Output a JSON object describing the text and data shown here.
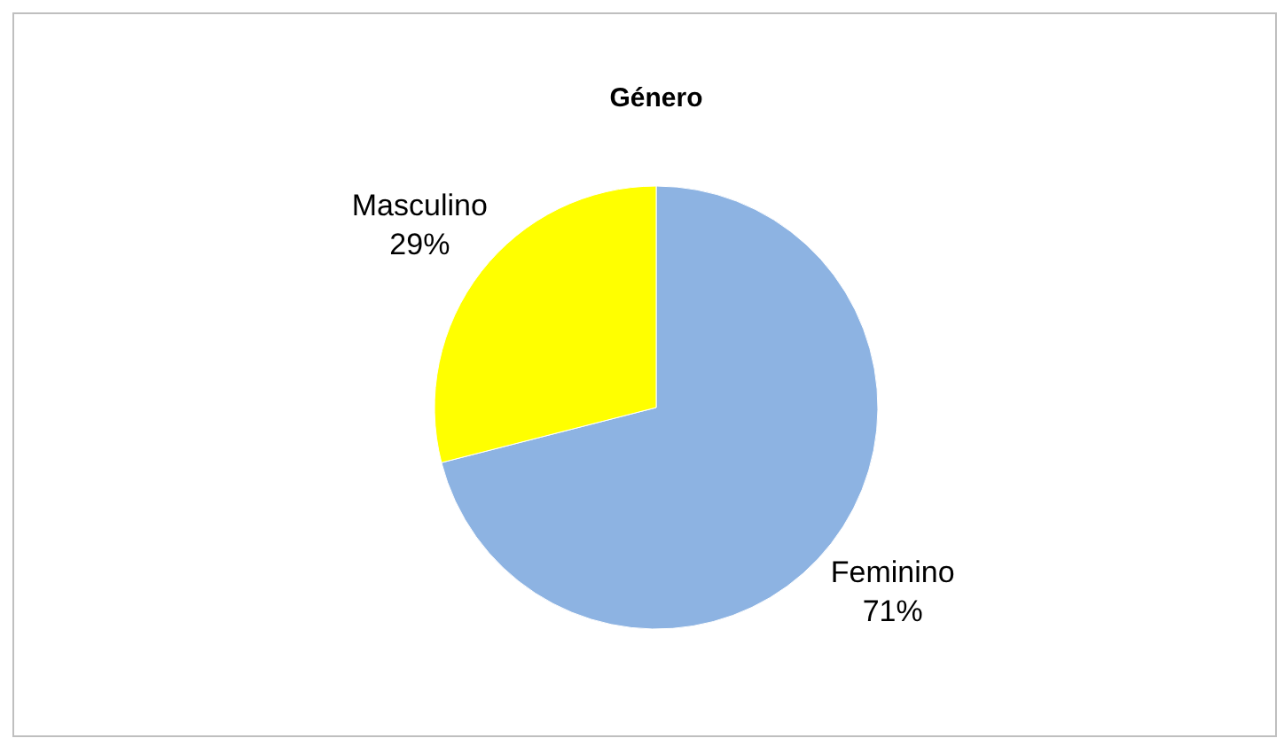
{
  "chart_data": {
    "type": "pie",
    "title": "Género",
    "categories": [
      "Feminino",
      "Masculino"
    ],
    "values": [
      71,
      29
    ],
    "colors": [
      "#8db3e2",
      "#ffff00"
    ],
    "value_labels": [
      "71%",
      "29%"
    ],
    "legend": false
  }
}
